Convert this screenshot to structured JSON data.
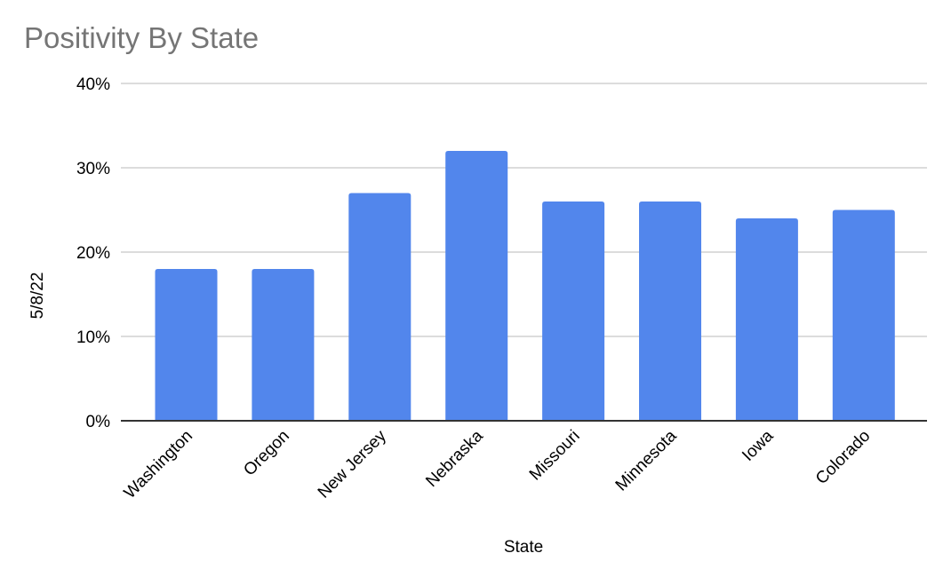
{
  "chart_data": {
    "type": "bar",
    "title": "Positivity By State",
    "xlabel": "State",
    "ylabel": "5/8/22",
    "categories": [
      "Washington",
      "Oregon",
      "New Jersey",
      "Nebraska",
      "Missouri",
      "Minnesota",
      "Iowa",
      "Colorado"
    ],
    "values": [
      18,
      18,
      27,
      32,
      26,
      26,
      24,
      25
    ],
    "ylim": [
      0,
      40
    ],
    "yticks": [
      0,
      10,
      20,
      30,
      40
    ],
    "ytick_labels": [
      "0%",
      "10%",
      "20%",
      "30%",
      "40%"
    ],
    "bar_color": "#5286ec",
    "grid": true,
    "legend": "none"
  }
}
